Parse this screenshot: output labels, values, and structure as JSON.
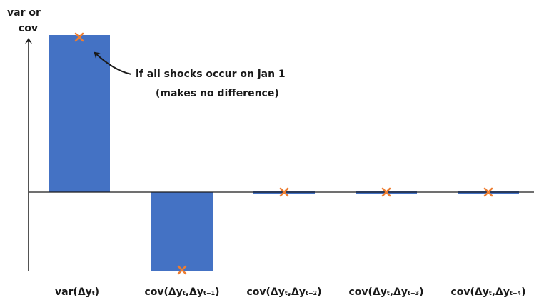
{
  "chart_data": {
    "type": "bar",
    "ylabel_lines": [
      "var or",
      "cov"
    ],
    "categories": [
      {
        "prefix": "var(Δy",
        "sub1": "t",
        "mid": "",
        "sub2": "",
        "suffix": ")"
      },
      {
        "prefix": "cov(Δy",
        "sub1": "t",
        "mid": ",Δy",
        "sub2": "t−1",
        "suffix": ")"
      },
      {
        "prefix": "cov(Δy",
        "sub1": "t",
        "mid": ",Δy",
        "sub2": "t−2",
        "suffix": ")"
      },
      {
        "prefix": "cov(Δy",
        "sub1": "t",
        "mid": ",Δy",
        "sub2": "t−3",
        "suffix": ")"
      },
      {
        "prefix": "cov(Δy",
        "sub1": "t",
        "mid": ",Δy",
        "sub2": "t−4",
        "suffix": ")"
      }
    ],
    "values": [
      1.0,
      -0.5,
      0.0,
      0.0,
      0.0
    ],
    "markers": [
      1.0,
      -0.5,
      0.0,
      0.0,
      0.0
    ],
    "ylim": [
      -0.5,
      1.0
    ],
    "bar_color": "#4472C4",
    "marker_color": "#ED7D31",
    "annotation": {
      "lines": [
        "if all shocks occur on jan 1",
        "(makes no difference)"
      ],
      "target_index": 0
    }
  }
}
